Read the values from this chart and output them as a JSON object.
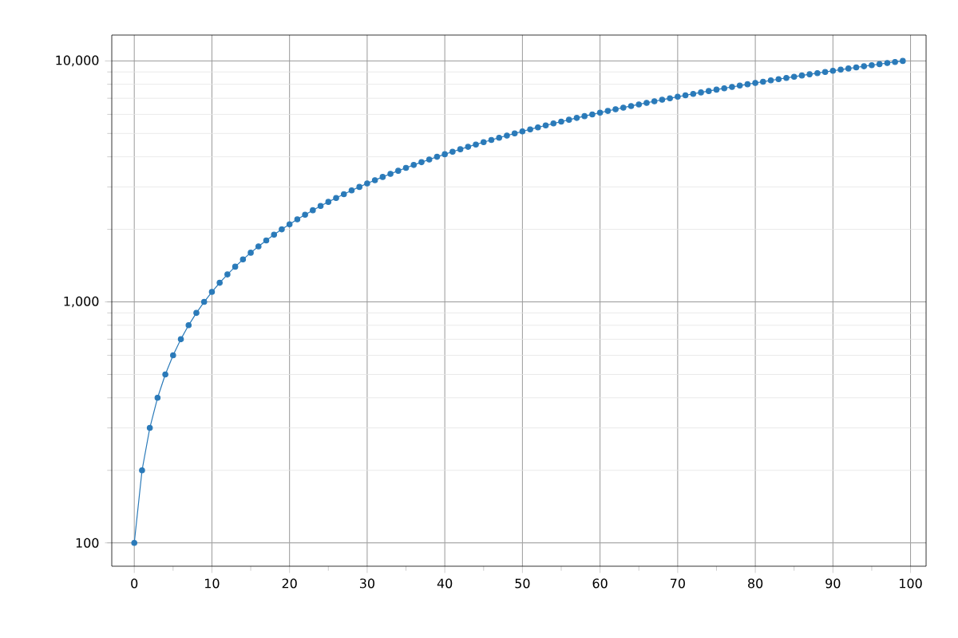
{
  "chart_data": {
    "type": "line",
    "log": "y",
    "grid": true,
    "marker": "circle",
    "line_style": "solid",
    "x": [
      0,
      1,
      2,
      3,
      4,
      5,
      6,
      7,
      8,
      9,
      10,
      11,
      12,
      13,
      14,
      15,
      16,
      17,
      18,
      19,
      20,
      21,
      22,
      23,
      24,
      25,
      26,
      27,
      28,
      29,
      30,
      31,
      32,
      33,
      34,
      35,
      36,
      37,
      38,
      39,
      40,
      41,
      42,
      43,
      44,
      45,
      46,
      47,
      48,
      49,
      50,
      51,
      52,
      53,
      54,
      55,
      56,
      57,
      58,
      59,
      60,
      61,
      62,
      63,
      64,
      65,
      66,
      67,
      68,
      69,
      70,
      71,
      72,
      73,
      74,
      75,
      76,
      77,
      78,
      79,
      80,
      81,
      82,
      83,
      84,
      85,
      86,
      87,
      88,
      89,
      90,
      91,
      92,
      93,
      94,
      95,
      96,
      97,
      98,
      99
    ],
    "series": [
      {
        "color": "#2a7ab9",
        "values": [
          100,
          200,
          300,
          400,
          500,
          600,
          700,
          800,
          900,
          1000,
          1100,
          1200,
          1300,
          1400,
          1500,
          1600,
          1700,
          1800,
          1900,
          2000,
          2100,
          2200,
          2300,
          2400,
          2500,
          2600,
          2700,
          2800,
          2900,
          3000,
          3100,
          3200,
          3300,
          3400,
          3500,
          3600,
          3700,
          3800,
          3900,
          4000,
          4100,
          4200,
          4300,
          4400,
          4500,
          4600,
          4700,
          4800,
          4900,
          5000,
          5100,
          5200,
          5300,
          5400,
          5500,
          5600,
          5700,
          5800,
          5900,
          6000,
          6100,
          6200,
          6300,
          6400,
          6500,
          6600,
          6700,
          6800,
          6900,
          7000,
          7100,
          7200,
          7300,
          7400,
          7500,
          7600,
          7700,
          7800,
          7900,
          8000,
          8100,
          8200,
          8300,
          8400,
          8500,
          8600,
          8700,
          8800,
          8900,
          9000,
          9100,
          9200,
          9300,
          9400,
          9500,
          9600,
          9700,
          9800,
          9900,
          10000
        ]
      }
    ],
    "xlim": [
      -2.9,
      102
    ],
    "ylim": [
      80,
      12800
    ],
    "xticks": [
      0,
      10,
      20,
      30,
      40,
      50,
      60,
      70,
      80,
      90,
      100
    ],
    "yticks": [
      {
        "value": 100,
        "label": "100"
      },
      {
        "value": 1000,
        "label": "1,000"
      },
      {
        "value": 10000,
        "label": "10,000"
      }
    ]
  }
}
